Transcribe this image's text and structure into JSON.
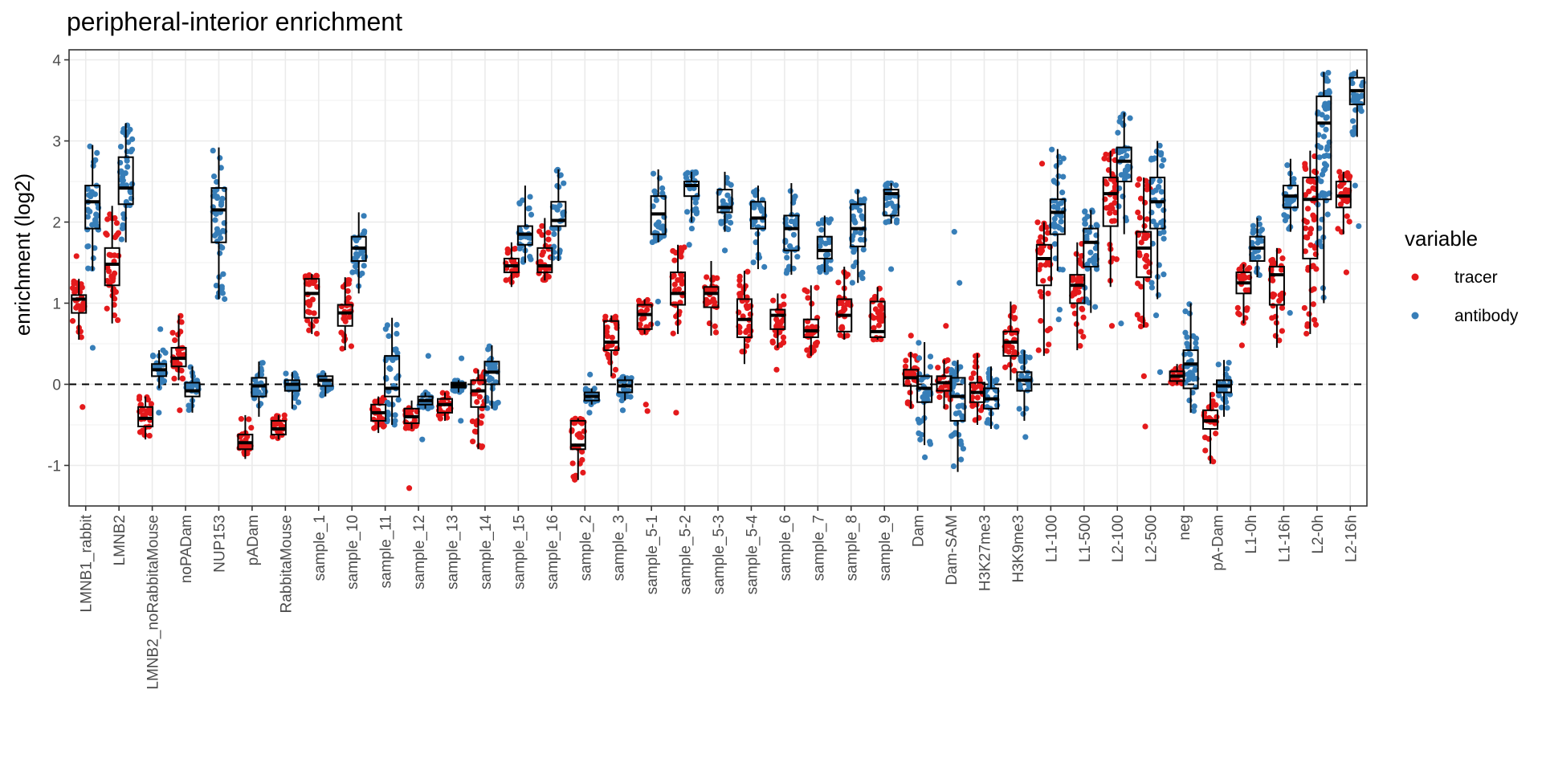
{
  "chart_data": {
    "type": "box",
    "title": "peripheral-interior enrichment",
    "xlabel": "",
    "ylabel": "enrichment (log2)",
    "ylim": [
      -1.5,
      4.15
    ],
    "yticks": [
      -1,
      0,
      1,
      2,
      3,
      4
    ],
    "ytick_labels": [
      "-1",
      "0",
      "1",
      "2",
      "3",
      "4"
    ],
    "reference_line": {
      "y": 0,
      "style": "dashed"
    },
    "legend": {
      "title": "variable",
      "position": "right",
      "entries": [
        {
          "name": "tracer",
          "color": "#e41a1c"
        },
        {
          "name": "antibody",
          "color": "#377eb8"
        }
      ]
    },
    "categories": [
      "LMNB1_rabbit",
      "LMNB2",
      "LMNB2_noRabbitaMouse",
      "noPADam",
      "NUP153",
      "pADam",
      "RabbitaMouse",
      "sample_1",
      "sample_10",
      "sample_11",
      "sample_12",
      "sample_13",
      "sample_14",
      "sample_15",
      "sample_16",
      "sample_2",
      "sample_3",
      "sample_5-1",
      "sample_5-2",
      "sample_5-3",
      "sample_5-4",
      "sample_6",
      "sample_7",
      "sample_8",
      "sample_9",
      "Dam",
      "Dam-SAM",
      "H3K27me3",
      "H3K9me3",
      "L1-100",
      "L1-500",
      "L2-100",
      "L2-500",
      "neg",
      "pA-Dam",
      "L1-0h",
      "L1-16h",
      "L2-0h",
      "L2-16h"
    ],
    "series": [
      {
        "name": "tracer",
        "color": "#e41a1c",
        "boxes": [
          {
            "category": "LMNB1_rabbit",
            "q1": 0.88,
            "median": 1.05,
            "q3": 1.1,
            "lower": 0.55,
            "upper": 1.3,
            "outliers": [
              -0.28,
              1.58
            ]
          },
          {
            "category": "LMNB2",
            "q1": 1.22,
            "median": 1.48,
            "q3": 1.68,
            "lower": 0.75,
            "upper": 2.2,
            "outliers": []
          },
          {
            "category": "LMNB2_noRabbitaMouse",
            "q1": -0.52,
            "median": -0.42,
            "q3": -0.28,
            "lower": -0.68,
            "upper": -0.15,
            "outliers": []
          },
          {
            "category": "noPADam",
            "q1": 0.22,
            "median": 0.32,
            "q3": 0.45,
            "lower": 0.05,
            "upper": 0.85,
            "outliers": [
              -0.32
            ]
          },
          {
            "category": "pADam",
            "q1": -0.8,
            "median": -0.72,
            "q3": -0.62,
            "lower": -0.92,
            "upper": -0.38,
            "outliers": []
          },
          {
            "category": "RabbitaMouse",
            "q1": -0.62,
            "median": -0.55,
            "q3": -0.45,
            "lower": -0.68,
            "upper": -0.38,
            "outliers": []
          },
          {
            "category": "sample_1",
            "q1": 0.82,
            "median": 1.12,
            "q3": 1.3,
            "lower": 0.62,
            "upper": 1.36,
            "outliers": []
          },
          {
            "category": "sample_10",
            "q1": 0.72,
            "median": 0.88,
            "q3": 0.98,
            "lower": 0.42,
            "upper": 1.32,
            "outliers": []
          },
          {
            "category": "sample_11",
            "q1": -0.45,
            "median": -0.35,
            "q3": -0.25,
            "lower": -0.6,
            "upper": -0.15,
            "outliers": []
          },
          {
            "category": "sample_12",
            "q1": -0.48,
            "median": -0.4,
            "q3": -0.3,
            "lower": -0.55,
            "upper": -0.2,
            "outliers": [
              -1.28
            ]
          },
          {
            "category": "sample_13",
            "q1": -0.35,
            "median": -0.25,
            "q3": -0.18,
            "lower": -0.45,
            "upper": -0.1,
            "outliers": []
          },
          {
            "category": "sample_14",
            "q1": -0.28,
            "median": -0.08,
            "q3": 0.05,
            "lower": -0.8,
            "upper": 0.18,
            "outliers": []
          },
          {
            "category": "sample_15",
            "q1": 1.38,
            "median": 1.46,
            "q3": 1.55,
            "lower": 1.2,
            "upper": 1.75,
            "outliers": []
          },
          {
            "category": "sample_16",
            "q1": 1.38,
            "median": 1.46,
            "q3": 1.68,
            "lower": 1.28,
            "upper": 2.05,
            "outliers": []
          },
          {
            "category": "sample_2",
            "q1": -0.8,
            "median": -0.75,
            "q3": -0.45,
            "lower": -1.18,
            "upper": -0.42,
            "outliers": []
          },
          {
            "category": "sample_3",
            "q1": 0.42,
            "median": 0.52,
            "q3": 0.78,
            "lower": 0.1,
            "upper": 0.85,
            "outliers": []
          },
          {
            "category": "sample_5-1",
            "q1": 0.68,
            "median": 0.86,
            "q3": 0.98,
            "lower": 0.62,
            "upper": 1.05,
            "outliers": [
              -0.25,
              -0.33
            ]
          },
          {
            "category": "sample_5-2",
            "q1": 0.98,
            "median": 1.12,
            "q3": 1.38,
            "lower": 0.62,
            "upper": 1.72,
            "outliers": [
              -0.35
            ]
          },
          {
            "category": "sample_5-3",
            "q1": 0.95,
            "median": 1.12,
            "q3": 1.2,
            "lower": 0.6,
            "upper": 1.52,
            "outliers": []
          },
          {
            "category": "sample_5-4",
            "q1": 0.58,
            "median": 0.8,
            "q3": 1.05,
            "lower": 0.25,
            "upper": 1.4,
            "outliers": []
          },
          {
            "category": "sample_6",
            "q1": 0.68,
            "median": 0.85,
            "q3": 0.92,
            "lower": 0.45,
            "upper": 1.12,
            "outliers": [
              0.18
            ]
          },
          {
            "category": "sample_7",
            "q1": 0.58,
            "median": 0.66,
            "q3": 0.8,
            "lower": 0.35,
            "upper": 1.22,
            "outliers": []
          },
          {
            "category": "sample_8",
            "q1": 0.65,
            "median": 0.85,
            "q3": 1.05,
            "lower": 0.55,
            "upper": 1.45,
            "outliers": []
          },
          {
            "category": "sample_9",
            "q1": 0.58,
            "median": 0.65,
            "q3": 1.02,
            "lower": 0.55,
            "upper": 1.2,
            "outliers": []
          },
          {
            "category": "Dam",
            "q1": -0.02,
            "median": 0.08,
            "q3": 0.18,
            "lower": -0.3,
            "upper": 0.4,
            "outliers": [
              0.6
            ]
          },
          {
            "category": "Dam-SAM",
            "q1": -0.08,
            "median": 0.02,
            "q3": 0.1,
            "lower": -0.3,
            "upper": 0.3,
            "outliers": [
              0.72
            ]
          },
          {
            "category": "H3K27me3",
            "q1": -0.22,
            "median": -0.1,
            "q3": 0.02,
            "lower": -0.5,
            "upper": 0.38,
            "outliers": []
          },
          {
            "category": "H3K9me3",
            "q1": 0.35,
            "median": 0.52,
            "q3": 0.65,
            "lower": 0.05,
            "upper": 1.02,
            "outliers": []
          },
          {
            "category": "L1-100",
            "q1": 1.22,
            "median": 1.55,
            "q3": 1.72,
            "lower": 0.35,
            "upper": 2.0,
            "outliers": [
              2.72
            ]
          },
          {
            "category": "L1-500",
            "q1": 1.0,
            "median": 1.22,
            "q3": 1.35,
            "lower": 0.42,
            "upper": 1.75,
            "outliers": []
          },
          {
            "category": "L2-100",
            "q1": 1.95,
            "median": 2.35,
            "q3": 2.55,
            "lower": 1.2,
            "upper": 2.88,
            "outliers": [
              0.72
            ]
          },
          {
            "category": "L2-500",
            "q1": 1.32,
            "median": 1.68,
            "q3": 1.88,
            "lower": 0.7,
            "upper": 2.55,
            "outliers": [
              -0.52,
              0.1
            ]
          },
          {
            "category": "neg",
            "q1": 0.04,
            "median": 0.1,
            "q3": 0.16,
            "lower": 0.0,
            "upper": 0.25,
            "outliers": []
          },
          {
            "category": "pA-Dam",
            "q1": -0.55,
            "median": -0.45,
            "q3": -0.32,
            "lower": -0.98,
            "upper": -0.1,
            "outliers": []
          },
          {
            "category": "L1-0h",
            "q1": 1.12,
            "median": 1.25,
            "q3": 1.38,
            "lower": 0.75,
            "upper": 1.48,
            "outliers": [
              0.48
            ]
          },
          {
            "category": "L1-16h",
            "q1": 0.98,
            "median": 1.35,
            "q3": 1.45,
            "lower": 0.45,
            "upper": 1.68,
            "outliers": []
          },
          {
            "category": "L2-0h",
            "q1": 1.55,
            "median": 2.28,
            "q3": 2.55,
            "lower": 0.62,
            "upper": 2.88,
            "outliers": []
          },
          {
            "category": "L2-16h",
            "q1": 2.18,
            "median": 2.32,
            "q3": 2.5,
            "lower": 1.85,
            "upper": 2.62,
            "outliers": [
              1.38
            ]
          }
        ]
      },
      {
        "name": "antibody",
        "color": "#377eb8",
        "boxes": [
          {
            "category": "LMNB1_rabbit",
            "q1": 1.92,
            "median": 2.25,
            "q3": 2.45,
            "lower": 1.4,
            "upper": 2.95,
            "outliers": [
              0.45
            ]
          },
          {
            "category": "LMNB2",
            "q1": 2.22,
            "median": 2.42,
            "q3": 2.8,
            "lower": 1.75,
            "upper": 3.22,
            "outliers": []
          },
          {
            "category": "LMNB2_noRabbitaMouse",
            "q1": 0.1,
            "median": 0.18,
            "q3": 0.25,
            "lower": -0.05,
            "upper": 0.42,
            "outliers": [
              0.68,
              -0.35
            ]
          },
          {
            "category": "noPADam",
            "q1": -0.15,
            "median": -0.08,
            "q3": 0.02,
            "lower": -0.35,
            "upper": 0.22,
            "outliers": []
          },
          {
            "category": "NUP153",
            "q1": 1.75,
            "median": 2.15,
            "q3": 2.42,
            "lower": 1.05,
            "upper": 2.92,
            "outliers": []
          },
          {
            "category": "pADam",
            "q1": -0.15,
            "median": -0.02,
            "q3": 0.08,
            "lower": -0.4,
            "upper": 0.28,
            "outliers": []
          },
          {
            "category": "RabbitaMouse",
            "q1": -0.08,
            "median": 0.0,
            "q3": 0.05,
            "lower": -0.3,
            "upper": 0.15,
            "outliers": []
          },
          {
            "category": "sample_1",
            "q1": -0.02,
            "median": 0.05,
            "q3": 0.1,
            "lower": -0.15,
            "upper": 0.14,
            "outliers": []
          },
          {
            "category": "sample_10",
            "q1": 1.52,
            "median": 1.68,
            "q3": 1.82,
            "lower": 1.12,
            "upper": 2.12,
            "outliers": []
          },
          {
            "category": "sample_11",
            "q1": -0.15,
            "median": -0.05,
            "q3": 0.35,
            "lower": -0.5,
            "upper": 0.82,
            "outliers": []
          },
          {
            "category": "sample_12",
            "q1": -0.25,
            "median": -0.2,
            "q3": -0.15,
            "lower": -0.3,
            "upper": -0.1,
            "outliers": [
              0.35,
              -0.68
            ]
          },
          {
            "category": "sample_13",
            "q1": -0.04,
            "median": -0.01,
            "q3": 0.02,
            "lower": -0.1,
            "upper": 0.05,
            "outliers": [
              0.32,
              -0.45
            ]
          },
          {
            "category": "sample_14",
            "q1": 0.0,
            "median": 0.15,
            "q3": 0.28,
            "lower": -0.3,
            "upper": 0.48,
            "outliers": []
          },
          {
            "category": "sample_15",
            "q1": 1.72,
            "median": 1.85,
            "q3": 1.95,
            "lower": 1.5,
            "upper": 2.45,
            "outliers": []
          },
          {
            "category": "sample_16",
            "q1": 1.95,
            "median": 2.02,
            "q3": 2.25,
            "lower": 1.52,
            "upper": 2.65,
            "outliers": []
          },
          {
            "category": "sample_2",
            "q1": -0.2,
            "median": -0.15,
            "q3": -0.1,
            "lower": -0.25,
            "upper": -0.05,
            "outliers": [
              0.12,
              -0.35
            ]
          },
          {
            "category": "sample_3",
            "q1": -0.1,
            "median": -0.02,
            "q3": 0.05,
            "lower": -0.2,
            "upper": 0.1,
            "outliers": [
              -0.32
            ]
          },
          {
            "category": "sample_5-1",
            "q1": 1.85,
            "median": 2.1,
            "q3": 2.32,
            "lower": 1.75,
            "upper": 2.65,
            "outliers": [
              1.02,
              0.75
            ]
          },
          {
            "category": "sample_5-2",
            "q1": 2.32,
            "median": 2.45,
            "q3": 2.5,
            "lower": 2.0,
            "upper": 2.62,
            "outliers": [
              1.72,
              1.92
            ]
          },
          {
            "category": "sample_5-3",
            "q1": 2.12,
            "median": 2.18,
            "q3": 2.4,
            "lower": 1.88,
            "upper": 2.62,
            "outliers": [
              1.65
            ]
          },
          {
            "category": "sample_5-4",
            "q1": 1.92,
            "median": 2.05,
            "q3": 2.25,
            "lower": 1.42,
            "upper": 2.45,
            "outliers": []
          },
          {
            "category": "sample_6",
            "q1": 1.65,
            "median": 1.92,
            "q3": 2.08,
            "lower": 1.35,
            "upper": 2.48,
            "outliers": []
          },
          {
            "category": "sample_7",
            "q1": 1.55,
            "median": 1.65,
            "q3": 1.82,
            "lower": 1.38,
            "upper": 2.08,
            "outliers": []
          },
          {
            "category": "sample_8",
            "q1": 1.7,
            "median": 1.92,
            "q3": 2.22,
            "lower": 1.25,
            "upper": 2.4,
            "outliers": []
          },
          {
            "category": "sample_9",
            "q1": 2.08,
            "median": 2.35,
            "q3": 2.4,
            "lower": 1.98,
            "upper": 2.48,
            "outliers": [
              1.42
            ]
          },
          {
            "category": "Dam",
            "q1": -0.22,
            "median": -0.05,
            "q3": 0.1,
            "lower": -0.75,
            "upper": 0.52,
            "outliers": [
              -0.9
            ]
          },
          {
            "category": "Dam-SAM",
            "q1": -0.45,
            "median": -0.15,
            "q3": 0.08,
            "lower": -1.08,
            "upper": 0.3,
            "outliers": [
              1.25,
              1.88
            ]
          },
          {
            "category": "H3K27me3",
            "q1": -0.3,
            "median": -0.18,
            "q3": -0.05,
            "lower": -0.55,
            "upper": 0.22,
            "outliers": []
          },
          {
            "category": "H3K9me3",
            "q1": -0.08,
            "median": 0.05,
            "q3": 0.15,
            "lower": -0.45,
            "upper": 0.42,
            "outliers": [
              -0.65
            ]
          },
          {
            "category": "L1-100",
            "q1": 1.85,
            "median": 2.12,
            "q3": 2.28,
            "lower": 1.4,
            "upper": 2.9,
            "outliers": [
              0.8,
              0.92
            ]
          },
          {
            "category": "L1-500",
            "q1": 1.45,
            "median": 1.75,
            "q3": 1.92,
            "lower": 0.88,
            "upper": 2.15,
            "outliers": []
          },
          {
            "category": "L2-100",
            "q1": 2.5,
            "median": 2.75,
            "q3": 2.92,
            "lower": 1.85,
            "upper": 3.35,
            "outliers": [
              0.75
            ]
          },
          {
            "category": "L2-500",
            "q1": 1.92,
            "median": 2.25,
            "q3": 2.55,
            "lower": 1.05,
            "upper": 3.0,
            "outliers": [
              0.15,
              0.85
            ]
          },
          {
            "category": "neg",
            "q1": -0.05,
            "median": 0.25,
            "q3": 0.42,
            "lower": -0.35,
            "upper": 1.0,
            "outliers": []
          },
          {
            "category": "pA-Dam",
            "q1": -0.1,
            "median": -0.02,
            "q3": 0.05,
            "lower": -0.4,
            "upper": 0.3,
            "outliers": []
          },
          {
            "category": "L1-0h",
            "q1": 1.52,
            "median": 1.68,
            "q3": 1.82,
            "lower": 1.32,
            "upper": 2.05,
            "outliers": []
          },
          {
            "category": "L1-16h",
            "q1": 2.18,
            "median": 2.32,
            "q3": 2.45,
            "lower": 1.88,
            "upper": 2.78,
            "outliers": [
              0.88
            ]
          },
          {
            "category": "L2-0h",
            "q1": 2.28,
            "median": 3.22,
            "q3": 3.55,
            "lower": 1.0,
            "upper": 3.85,
            "outliers": []
          },
          {
            "category": "L2-16h",
            "q1": 3.45,
            "median": 3.62,
            "q3": 3.78,
            "lower": 3.05,
            "upper": 3.88,
            "outliers": [
              1.95,
              2.45
            ]
          }
        ]
      }
    ]
  }
}
